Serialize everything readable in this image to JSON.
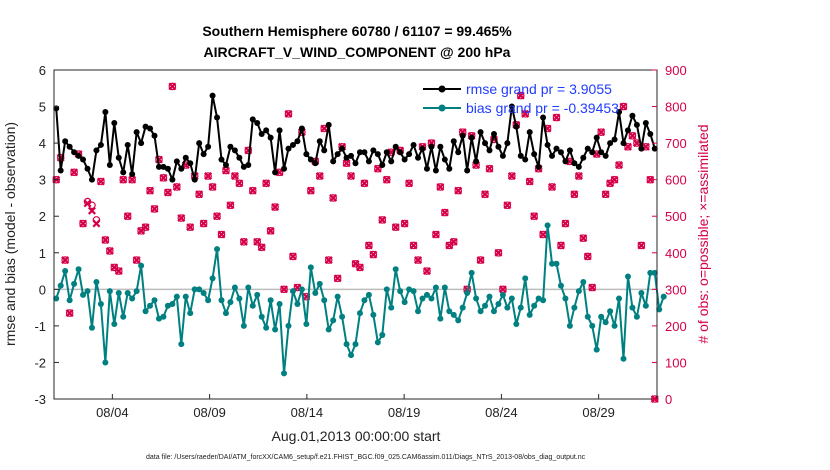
{
  "chart_data": {
    "type": "line",
    "title_line1": "Southern Hemisphere 60780 / 61107 = 99.465%",
    "title_line2": "AIRCRAFT_V_WIND_COMPONENT @ 200 hPa",
    "xlabel": "Aug.01,2013 00:00:00 start",
    "ylabel": "rmse and bias (model - observation)",
    "ylabel_right": "# of obs: o=possible; ×=assimilated",
    "footnote": "data file: /Users/raeder/DAI/ATM_forcXX/CAM6_setup/f.e21.FHIST_BGC.f09_025.CAM6assim.011/Diags_NTrS_2013-08/obs_diag_output.nc",
    "x_range": [
      1,
      32
    ],
    "ylim": [
      -3,
      6
    ],
    "y_ticks": [
      "-3",
      "-2",
      "-1",
      "0",
      "1",
      "2",
      "3",
      "4",
      "5",
      "6"
    ],
    "ylim_right": [
      0,
      900
    ],
    "y_ticks_right": [
      "0",
      "100",
      "200",
      "300",
      "400",
      "500",
      "600",
      "700",
      "800",
      "900"
    ],
    "x_ticks": [
      {
        "x": 4,
        "label": "08/04"
      },
      {
        "x": 9,
        "label": "08/09"
      },
      {
        "x": 14,
        "label": "08/14"
      },
      {
        "x": 19,
        "label": "08/19"
      },
      {
        "x": 24,
        "label": "08/24"
      },
      {
        "x": 29,
        "label": "08/29"
      }
    ],
    "legend": [
      {
        "label": "rmse grand pr = 3.9055",
        "color": "#000000"
      },
      {
        "label": "bias grand pr = -0.39453",
        "color": "#008080"
      }
    ],
    "series": [
      {
        "name": "rmse",
        "color": "#000000",
        "values": [
          4.95,
          3.25,
          4.05,
          3.9,
          3.75,
          3.65,
          3.55,
          3.3,
          3.0,
          3.8,
          3.95,
          4.85,
          3.4,
          4.55,
          3.6,
          3.2,
          3.95,
          3.15,
          4.3,
          4.0,
          4.45,
          4.4,
          4.2,
          3.35,
          3.35,
          3.3,
          3.0,
          3.5,
          3.3,
          3.6,
          3.45,
          3.0,
          4.0,
          3.7,
          3.9,
          5.3,
          4.7,
          3.55,
          3.4,
          3.9,
          3.8,
          3.6,
          3.35,
          3.4,
          4.65,
          4.55,
          4.25,
          4.35,
          4.15,
          3.2,
          4.35,
          3.3,
          3.85,
          3.95,
          4.05,
          4.4,
          3.7,
          3.55,
          3.45,
          4.05,
          3.8,
          4.5,
          3.5,
          3.7,
          3.85,
          3.6,
          3.65,
          3.45,
          3.75,
          3.75,
          3.5,
          3.8,
          3.7,
          3.4,
          3.75,
          3.5,
          3.9,
          3.75,
          3.55,
          3.7,
          3.95,
          3.6,
          3.85,
          3.3,
          3.9,
          3.25,
          3.9,
          3.55,
          3.3,
          4.05,
          3.75,
          4.2,
          3.25,
          4.15,
          3.5,
          4.3,
          4.0,
          3.8,
          4.25,
          3.9,
          3.65,
          4.0,
          5.0,
          4.45,
          3.65,
          3.55,
          4.3,
          3.7,
          3.35,
          4.7,
          3.95,
          3.65,
          3.85,
          3.75,
          3.5,
          3.8,
          3.45,
          3.35,
          3.6,
          3.85,
          3.75,
          4.15,
          3.75,
          3.65,
          4.0,
          4.1,
          4.85,
          4.0,
          4.35,
          4.75,
          4.5,
          3.85,
          4.55,
          4.25,
          3.85
        ]
      },
      {
        "name": "bias",
        "color": "#008080",
        "values": [
          -0.25,
          0.1,
          0.5,
          -0.3,
          0.15,
          0.55,
          -0.15,
          -0.05,
          -1.05,
          0.2,
          -0.4,
          -2.0,
          -0.05,
          -0.95,
          -0.1,
          -0.75,
          -0.1,
          -0.25,
          -0.05,
          0.65,
          -0.6,
          -0.45,
          -0.3,
          -0.8,
          -0.75,
          -0.45,
          -0.4,
          -0.2,
          -1.5,
          -0.2,
          -0.65,
          0.0,
          0.0,
          -0.1,
          -0.3,
          0.3,
          1.1,
          -0.3,
          -0.65,
          -0.35,
          0.05,
          -0.25,
          -1.0,
          0.05,
          -0.45,
          -0.15,
          -0.75,
          -1.05,
          -0.3,
          -1.1,
          -0.4,
          -2.3,
          -1.0,
          -0.05,
          -0.4,
          0.0,
          -0.95,
          0.6,
          -0.1,
          0.15,
          -0.3,
          -1.1,
          -0.85,
          -0.2,
          -0.75,
          -1.5,
          -1.8,
          -1.5,
          -0.65,
          -0.3,
          -0.15,
          -0.7,
          -1.45,
          -1.25,
          0.0,
          -0.5,
          0.55,
          -0.05,
          -0.35,
          0.0,
          -0.05,
          -0.6,
          -0.25,
          -0.15,
          -0.25,
          0.05,
          -0.8,
          0.05,
          -0.6,
          -0.7,
          -0.85,
          -0.5,
          -0.1,
          0.45,
          -0.25,
          -0.6,
          -0.45,
          -0.2,
          -0.6,
          -0.4,
          -0.15,
          -0.5,
          -0.25,
          -0.95,
          -0.5,
          0.3,
          -0.7,
          -0.45,
          -0.25,
          -0.3,
          1.75,
          0.7,
          0.7,
          0.1,
          -0.25,
          -1.0,
          -0.5,
          -0.05,
          0.2,
          -0.75,
          -1.0,
          -1.65,
          -0.75,
          -0.9,
          -0.6,
          -1.0,
          -0.25,
          -1.9,
          0.35,
          -0.5,
          -0.75,
          -0.1,
          -0.45,
          0.45,
          0.45,
          -0.55,
          -0.2
        ]
      },
      {
        "name": "obs_possible",
        "color": "#d6004a",
        "values": [
          600,
          660,
          380,
          235,
          620,
          670,
          480,
          540,
          530,
          490,
          595,
          435,
          405,
          360,
          350,
          600,
          500,
          600,
          380,
          460,
          470,
          570,
          520,
          655,
          605,
          565,
          855,
          580,
          495,
          640,
          470,
          610,
          560,
          480,
          610,
          580,
          500,
          450,
          625,
          530,
          610,
          590,
          430,
          680,
          570,
          430,
          415,
          590,
          460,
          525,
          620,
          300,
          780,
          390,
          305,
          730,
          280,
          570,
          650,
          610,
          740,
          380,
          550,
          330,
          690,
          645,
          610,
          370,
          360,
          590,
          420,
          395,
          630,
          490,
          600,
          675,
          470,
          680,
          480,
          590,
          420,
          380,
          690,
          350,
          700,
          450,
          580,
          510,
          420,
          430,
          570,
          730,
          300,
          720,
          640,
          380,
          560,
          630,
          710,
          400,
          300,
          530,
          610,
          750,
          830,
          780,
          595,
          500,
          630,
          450,
          740,
          580,
          770,
          420,
          480,
          650,
          560,
          610,
          440,
          390,
          305,
          670,
          730,
          560,
          590,
          600,
          640,
          800,
          690,
          720,
          700,
          420,
          690,
          600,
          0
        ]
      },
      {
        "name": "obs_assimilated",
        "color": "#d6004a",
        "values": [
          600,
          660,
          380,
          235,
          620,
          670,
          480,
          535,
          515,
          480,
          595,
          435,
          405,
          360,
          350,
          600,
          500,
          600,
          380,
          460,
          470,
          570,
          520,
          655,
          605,
          565,
          855,
          580,
          495,
          640,
          470,
          610,
          560,
          480,
          610,
          580,
          500,
          450,
          625,
          530,
          610,
          590,
          430,
          680,
          570,
          430,
          415,
          590,
          460,
          525,
          620,
          300,
          780,
          390,
          305,
          730,
          280,
          570,
          650,
          610,
          740,
          380,
          550,
          330,
          690,
          645,
          610,
          370,
          360,
          590,
          420,
          395,
          630,
          490,
          600,
          675,
          470,
          680,
          480,
          590,
          420,
          380,
          690,
          350,
          700,
          450,
          580,
          510,
          420,
          430,
          570,
          730,
          300,
          720,
          640,
          380,
          560,
          630,
          710,
          400,
          300,
          530,
          610,
          750,
          830,
          780,
          595,
          500,
          630,
          450,
          740,
          580,
          770,
          420,
          480,
          650,
          560,
          610,
          440,
          390,
          305,
          670,
          730,
          560,
          590,
          600,
          640,
          800,
          690,
          720,
          700,
          420,
          690,
          600,
          0
        ]
      }
    ]
  }
}
